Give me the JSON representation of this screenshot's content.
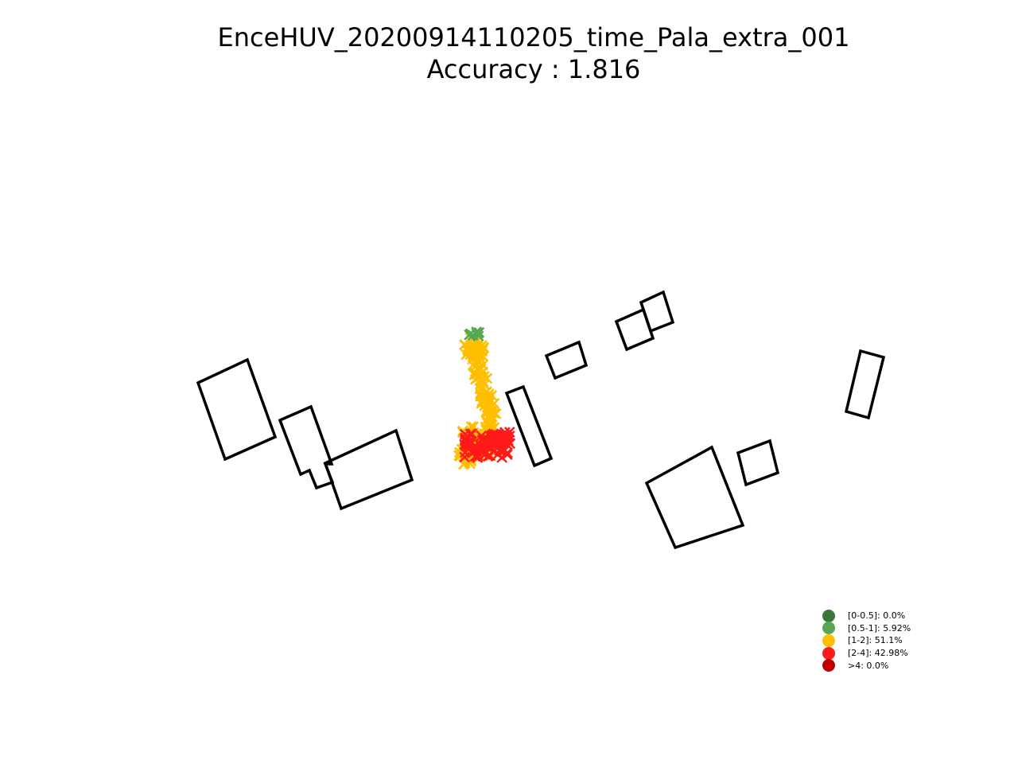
{
  "chart_data": {
    "type": "scatter",
    "title": "EnceHUV_20200914110205_time_Pala_extra_001",
    "subtitle": "Accuracy : 1.816",
    "axes_visible": false,
    "buildings": [
      [
        [
          249,
          481
        ],
        [
          311,
          452
        ],
        [
          346,
          549
        ],
        [
          283,
          577
        ]
      ],
      [
        [
          352,
          528
        ],
        [
          391,
          511
        ],
        [
          417,
          583
        ],
        [
          409,
          583
        ],
        [
          418,
          606
        ],
        [
          398,
          613
        ],
        [
          389,
          591
        ],
        [
          378,
          596
        ]
      ],
      [
        [
          409,
          582
        ],
        [
          498,
          541
        ],
        [
          518,
          603
        ],
        [
          429,
          639
        ]
      ],
      [
        [
          637,
          494
        ],
        [
          658,
          486
        ],
        [
          693,
          576
        ],
        [
          672,
          585
        ]
      ],
      [
        [
          687,
          447
        ],
        [
          728,
          430
        ],
        [
          737,
          459
        ],
        [
          698,
          475
        ]
      ],
      [
        [
          775,
          404
        ],
        [
          809,
          389
        ],
        [
          821,
          425
        ],
        [
          788,
          439
        ]
      ],
      [
        [
          806,
          380
        ],
        [
          834,
          367
        ],
        [
          846,
          405
        ],
        [
          818,
          416
        ]
      ],
      [
        [
          1082,
          441
        ],
        [
          1111,
          449
        ],
        [
          1092,
          525
        ],
        [
          1064,
          517
        ]
      ],
      [
        [
          813,
          607
        ],
        [
          895,
          562
        ],
        [
          934,
          660
        ],
        [
          849,
          688
        ]
      ],
      [
        [
          928,
          569
        ],
        [
          968,
          554
        ],
        [
          978,
          594
        ],
        [
          938,
          609
        ]
      ]
    ],
    "legend": [
      {
        "label": "[0-0.5]: 0.0%",
        "color": "#3b7538"
      },
      {
        "label": "[0.5-1]: 5.92%",
        "color": "#57a854"
      },
      {
        "label": "[1-2]: 51.1%",
        "color": "#ffbf00"
      },
      {
        "label": "[2-4]: 42.98%",
        "color": "#ff1a1a"
      },
      {
        "label": ">4: 0.0%",
        "color": "#c00000"
      }
    ],
    "point_color_groups": {
      "green": "#57a854",
      "yellow": "#ffbf00",
      "red": "#ff1a1a"
    }
  }
}
